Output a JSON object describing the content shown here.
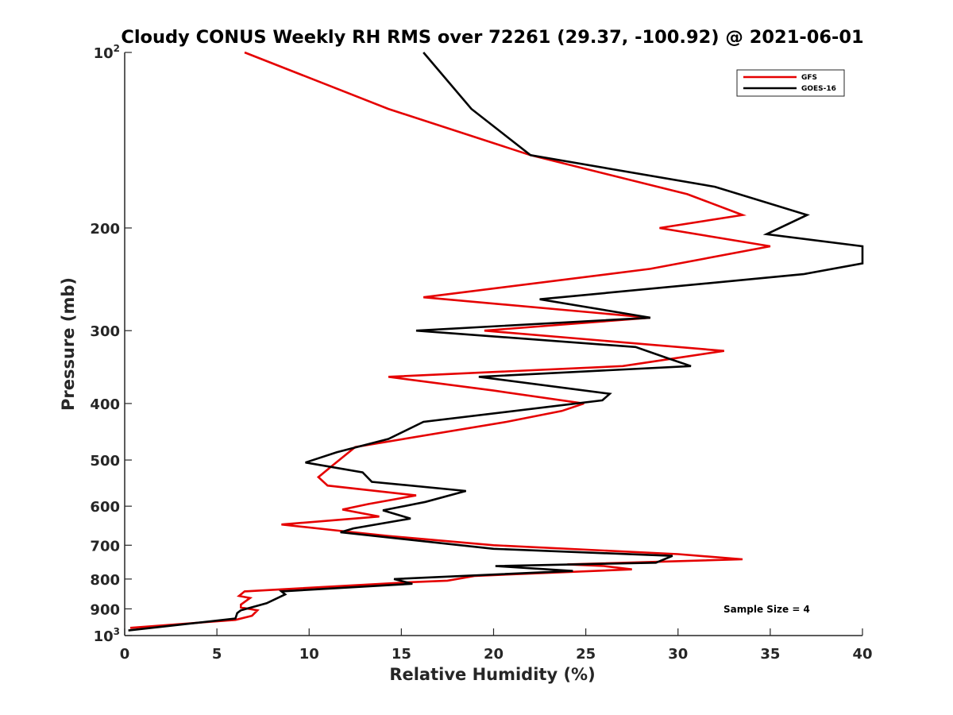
{
  "chart_data": {
    "type": "line",
    "title": "Cloudy CONUS Weekly RH RMS over 72261 (29.37, -100.92) @ 2021-06-01",
    "xlabel": "Relative Humidity (%)",
    "ylabel": "Pressure (mb)",
    "xlim": [
      0,
      40
    ],
    "ylim": [
      100,
      1000
    ],
    "yscale": "log",
    "y_reversed": true,
    "grid": false,
    "x_ticks": [
      0,
      5,
      10,
      15,
      20,
      25,
      30,
      35,
      40
    ],
    "x_tick_labels": [
      "0",
      "5",
      "10",
      "15",
      "20",
      "25",
      "30",
      "35",
      "40"
    ],
    "y_ticks": [
      100,
      200,
      300,
      400,
      500,
      600,
      700,
      800,
      900,
      1000
    ],
    "y_tick_labels": [
      {
        "base": "10",
        "exp": "2"
      },
      {
        "base": "200",
        "exp": ""
      },
      {
        "base": "300",
        "exp": ""
      },
      {
        "base": "400",
        "exp": ""
      },
      {
        "base": "500",
        "exp": ""
      },
      {
        "base": "600",
        "exp": ""
      },
      {
        "base": "700",
        "exp": ""
      },
      {
        "base": "800",
        "exp": ""
      },
      {
        "base": "900",
        "exp": ""
      },
      {
        "base": "10",
        "exp": "3"
      }
    ],
    "legend": {
      "position": "top-right",
      "entries": [
        "GFS",
        "GOES-16"
      ]
    },
    "annotation": "Sample Size = 4",
    "series": [
      {
        "name": "GFS",
        "color": "#e50000",
        "points": [
          [
            6.5,
            100
          ],
          [
            14.3,
            125
          ],
          [
            22.0,
            150
          ],
          [
            30.5,
            175
          ],
          [
            33.5,
            190
          ],
          [
            29.0,
            200
          ],
          [
            35.0,
            215
          ],
          [
            28.5,
            235
          ],
          [
            16.2,
            263
          ],
          [
            28.5,
            285
          ],
          [
            19.5,
            300
          ],
          [
            32.5,
            325
          ],
          [
            27.0,
            345
          ],
          [
            14.3,
            360
          ],
          [
            20.0,
            380
          ],
          [
            24.9,
            400
          ],
          [
            23.7,
            412
          ],
          [
            20.7,
            430
          ],
          [
            12.5,
            475
          ],
          [
            11.3,
            510
          ],
          [
            10.5,
            535
          ],
          [
            11.0,
            553
          ],
          [
            15.8,
            575
          ],
          [
            13.2,
            595
          ],
          [
            11.8,
            608
          ],
          [
            13.8,
            625
          ],
          [
            8.5,
            645
          ],
          [
            11.8,
            662
          ],
          [
            14.3,
            675
          ],
          [
            20.0,
            700
          ],
          [
            30.0,
            725
          ],
          [
            33.5,
            740
          ],
          [
            24.0,
            755
          ],
          [
            26.0,
            760
          ],
          [
            27.5,
            770
          ],
          [
            19.0,
            790
          ],
          [
            17.5,
            805
          ],
          [
            15.5,
            810
          ],
          [
            6.5,
            840
          ],
          [
            6.2,
            855
          ],
          [
            6.8,
            862
          ],
          [
            6.3,
            885
          ],
          [
            6.3,
            895
          ],
          [
            7.2,
            905
          ],
          [
            6.9,
            925
          ],
          [
            6.0,
            940
          ],
          [
            0.3,
            970
          ]
        ]
      },
      {
        "name": "GOES-16",
        "color": "#000000",
        "points": [
          [
            16.2,
            100
          ],
          [
            18.8,
            125
          ],
          [
            22.0,
            150
          ],
          [
            32.0,
            170
          ],
          [
            37.0,
            190
          ],
          [
            34.8,
            205
          ],
          [
            40.0,
            215
          ],
          [
            40.0,
            230
          ],
          [
            36.8,
            240
          ],
          [
            22.5,
            265
          ],
          [
            28.5,
            285
          ],
          [
            15.8,
            300
          ],
          [
            27.7,
            320
          ],
          [
            29.5,
            335
          ],
          [
            30.7,
            345
          ],
          [
            19.2,
            360
          ],
          [
            26.3,
            385
          ],
          [
            25.9,
            395
          ],
          [
            16.2,
            430
          ],
          [
            14.3,
            460
          ],
          [
            11.5,
            485
          ],
          [
            9.8,
            505
          ],
          [
            12.9,
            525
          ],
          [
            13.4,
            545
          ],
          [
            18.5,
            565
          ],
          [
            16.3,
            590
          ],
          [
            14.0,
            610
          ],
          [
            15.5,
            630
          ],
          [
            12.4,
            655
          ],
          [
            11.7,
            665
          ],
          [
            20.0,
            710
          ],
          [
            29.7,
            730
          ],
          [
            28.8,
            750
          ],
          [
            20.1,
            760
          ],
          [
            24.3,
            775
          ],
          [
            14.6,
            800
          ],
          [
            15.6,
            815
          ],
          [
            8.5,
            840
          ],
          [
            8.7,
            850
          ],
          [
            7.7,
            880
          ],
          [
            6.3,
            905
          ],
          [
            6.1,
            915
          ],
          [
            6.0,
            935
          ],
          [
            0.2,
            980
          ]
        ]
      }
    ]
  }
}
